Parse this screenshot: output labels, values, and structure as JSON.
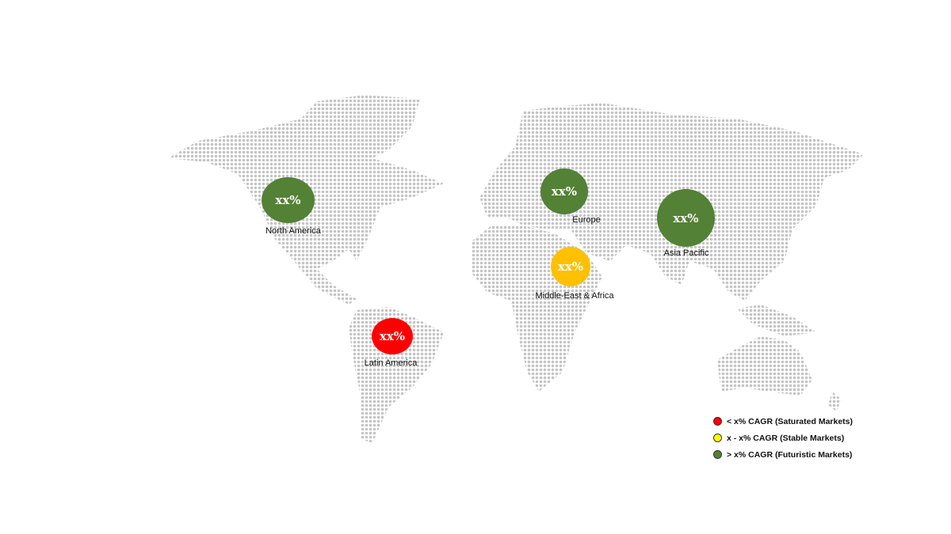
{
  "colors": {
    "red": "#ff0000",
    "yellow": "#ffc000",
    "green": "#538135",
    "map_dots": "#c4c4c4"
  },
  "regions": [
    {
      "name": "North America",
      "value": "xx%",
      "category": "green"
    },
    {
      "name": "Europe",
      "value": "xx%",
      "category": "green"
    },
    {
      "name": "Asia Pacific",
      "value": "xx%",
      "category": "green"
    },
    {
      "name": "Middle-East & Africa",
      "value": "xx%",
      "category": "yellow"
    },
    {
      "name": "Latin America",
      "value": "xx%",
      "category": "red"
    }
  ],
  "legend": [
    {
      "label": "< x% CAGR (Saturated Markets)",
      "color": "#ff0000"
    },
    {
      "label": "x - x% CAGR (Stable Markets)",
      "color": "#ffff00"
    },
    {
      "label": "> x% CAGR (Futuristic Markets)",
      "color": "#538135"
    }
  ]
}
